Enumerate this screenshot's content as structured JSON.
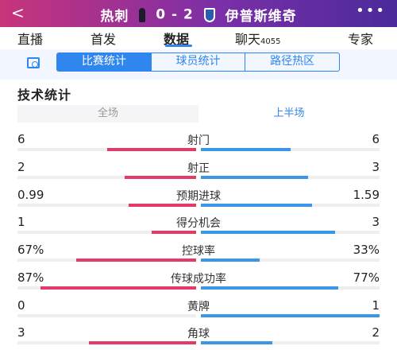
{
  "header": {
    "back": "<",
    "home_team": "热刺",
    "score": "0 - 2",
    "away_team": "伊普斯维奇",
    "more": "•••"
  },
  "tabs": [
    {
      "label": "直播"
    },
    {
      "label": "首发"
    },
    {
      "label": "数据"
    },
    {
      "label": "聊天",
      "count": "4055"
    },
    {
      "label": "专家"
    }
  ],
  "subtabs": [
    "比赛统计",
    "球员统计",
    "路径热区"
  ],
  "section_title": "技术统计",
  "period": {
    "full": "全场",
    "half": "上半场"
  },
  "colors": {
    "home": "#e33a6a",
    "away": "#3a96e8",
    "accent": "#2f86ee"
  },
  "stats": [
    {
      "name": "射门",
      "home": "6",
      "away": "6",
      "home_frac": 0.5,
      "away_frac": 0.5
    },
    {
      "name": "射正",
      "home": "2",
      "away": "3",
      "home_frac": 0.4,
      "away_frac": 0.6
    },
    {
      "name": "预期进球",
      "home": "0.99",
      "away": "1.59",
      "home_frac": 0.38,
      "away_frac": 0.62
    },
    {
      "name": "得分机会",
      "home": "1",
      "away": "3",
      "home_frac": 0.25,
      "away_frac": 0.75
    },
    {
      "name": "控球率",
      "home": "67%",
      "away": "33%",
      "home_frac": 0.67,
      "away_frac": 0.33
    },
    {
      "name": "传球成功率",
      "home": "87%",
      "away": "77%",
      "home_frac": 0.87,
      "away_frac": 0.77
    },
    {
      "name": "黄牌",
      "home": "0",
      "away": "1",
      "home_frac": 0.0,
      "away_frac": 1.0
    },
    {
      "name": "角球",
      "home": "3",
      "away": "2",
      "home_frac": 0.6,
      "away_frac": 0.4
    }
  ]
}
